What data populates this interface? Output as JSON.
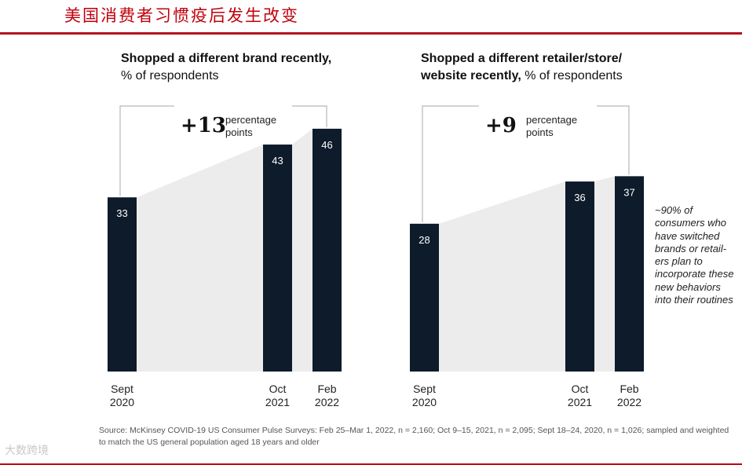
{
  "page_title": "美国消费者习惯疫后发生改变",
  "note": "~90% of consumers who have switched brands or retail-ers plan to incorporate these new behaviors into their routines",
  "source": "Source: McKinsey COVID-19 US Consumer Pulse Surveys: Feb 25–Mar 1, 2022, n = 2,160; Oct 9–15, 2021, n = 2,095; Sept 18–24, 2020, n = 1,026; sampled and weighted to match the US general population aged 18 years and older",
  "watermark": "大数跨境",
  "colors": {
    "bar": "#0d1b2a",
    "shade": "#ececec",
    "bracket": "#b8b8b8",
    "accent": "#c0000c"
  },
  "chart_data": [
    {
      "type": "bar",
      "title_bold": "Shopped a different brand recently,",
      "title_rest": "% of respondents",
      "categories": [
        "Sept 2020",
        "Oct 2021",
        "Feb 2022"
      ],
      "category_lines": [
        [
          "Sept",
          "2020"
        ],
        [
          "Oct",
          "2021"
        ],
        [
          "Feb",
          "2022"
        ]
      ],
      "values": [
        33,
        43,
        46
      ],
      "ylim": [
        0,
        60
      ],
      "change_value": "+13",
      "change_label_1": "percentage",
      "change_label_2": "points"
    },
    {
      "type": "bar",
      "title_bold_1": "Shopped a different retailer/store/",
      "title_bold_2": "website recently,",
      "title_rest": "% of respondents",
      "categories": [
        "Sept 2020",
        "Oct 2021",
        "Feb 2022"
      ],
      "category_lines": [
        [
          "Sept",
          "2020"
        ],
        [
          "Oct",
          "2021"
        ],
        [
          "Feb",
          "2022"
        ]
      ],
      "values": [
        28,
        36,
        37
      ],
      "ylim": [
        0,
        60
      ],
      "change_value": "+9",
      "change_label_1": "percentage",
      "change_label_2": "points"
    }
  ]
}
